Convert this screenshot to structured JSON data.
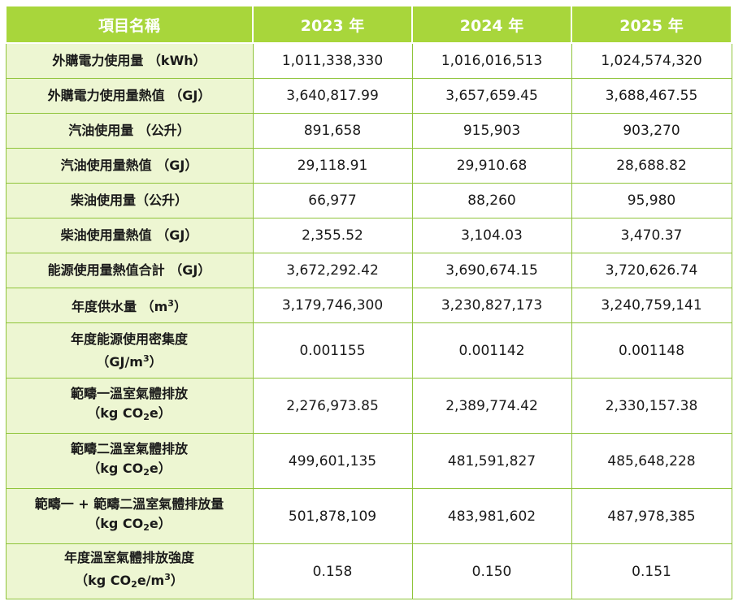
{
  "header": {
    "item": "項目名稱",
    "years": [
      "2023 年",
      "2024 年",
      "2025 年"
    ]
  },
  "rows": [
    {
      "name": "外購電力使用量 （kWh）",
      "values": [
        "1,011,338,330",
        "1,016,016,513",
        "1,024,574,320"
      ]
    },
    {
      "name": "外購電力使用量熱值 （GJ）",
      "values": [
        "3,640,817.99",
        "3,657,659.45",
        "3,688,467.55"
      ]
    },
    {
      "name": "汽油使用量 （公升）",
      "values": [
        "891,658",
        "915,903",
        "903,270"
      ]
    },
    {
      "name": "汽油使用量熱值 （GJ）",
      "values": [
        "29,118.91",
        "29,910.68",
        "28,688.82"
      ]
    },
    {
      "name": "柴油使用量（公升）",
      "values": [
        "66,977",
        "88,260",
        "95,980"
      ]
    },
    {
      "name": "柴油使用量熱值 （GJ）",
      "values": [
        "2,355.52",
        "3,104.03",
        "3,470.37"
      ]
    },
    {
      "name": "能源使用量熱值合計 （GJ）",
      "values": [
        "3,672,292.42",
        "3,690,674.15",
        "3,720,626.74"
      ]
    },
    {
      "name_a": "年度供水量 （m",
      "name_sup": "3",
      "name_b": "）",
      "values": [
        "3,179,746,300",
        "3,230,827,173",
        "3,240,759,141"
      ]
    },
    {
      "line1": "年度能源使用密集度",
      "line2_a": "（GJ/m",
      "line2_sup": "3",
      "line2_b": "）",
      "values": [
        "0.001155",
        "0.001142",
        "0.001148"
      ]
    },
    {
      "line1": "範疇一溫室氣體排放",
      "line2_a": "（kg CO",
      "line2_sub": "2",
      "line2_b": "e）",
      "values": [
        "2,276,973.85",
        "2,389,774.42",
        "2,330,157.38"
      ]
    },
    {
      "line1": "範疇二溫室氣體排放",
      "line2_a": "（kg CO",
      "line2_sub": "2",
      "line2_b": "e）",
      "values": [
        "499,601,135",
        "481,591,827",
        "485,648,228"
      ]
    },
    {
      "line1": "範疇一 + 範疇二溫室氣體排放量",
      "line2_a": "（kg CO",
      "line2_sub": "2",
      "line2_b": "e）",
      "values": [
        "501,878,109",
        "483,981,602",
        "487,978,385"
      ]
    },
    {
      "line1": "年度溫室氣體排放強度",
      "line2_a": "（kg CO",
      "line2_sub": "2",
      "line2_b": "e/m",
      "line2_sup": "3",
      "line2_c": "）",
      "values": [
        "0.158",
        "0.150",
        "0.151"
      ]
    }
  ],
  "colors": {
    "header_bg": "#a8d63b",
    "label_bg": "#edf6d2",
    "border": "#8fc43a"
  }
}
